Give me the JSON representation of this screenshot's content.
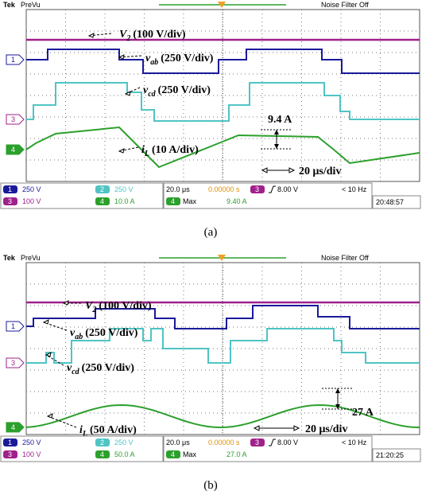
{
  "panels": [
    {
      "header": {
        "brand": "Tek",
        "mode": "PreVu",
        "filter": "Noise Filter Off"
      },
      "markers": [
        "1",
        "3",
        "4"
      ],
      "annotations": [
        {
          "symbol": "V",
          "sub": "2",
          "scale": "(100 V/div)"
        },
        {
          "symbol": "v",
          "sub": "ab",
          "scale": "(250 V/div)"
        },
        {
          "symbol": "v",
          "sub": "cd",
          "scale": "(250 V/div)"
        },
        {
          "symbol": "i",
          "sub": "L",
          "scale": "(10 A/div)"
        }
      ],
      "measure_label": "9.4 A",
      "time_label": "20 μs/div",
      "status": {
        "channel_scales": [
          {
            "num": "1",
            "scale": "250 V"
          },
          {
            "num": "2",
            "scale": "250 V"
          },
          {
            "num": "3",
            "scale": "100 V"
          },
          {
            "num": "4",
            "scale": "10.0 A"
          }
        ],
        "timebase": "20.0 μs",
        "position": "0.00000 s",
        "trigger": {
          "channel": "3",
          "level": "8.00 V"
        },
        "freq": "< 10 Hz",
        "measure": {
          "channel": "4",
          "label": "Max",
          "value": "9.40 A"
        },
        "clock": "20:48:57"
      },
      "caption": "(a)"
    },
    {
      "header": {
        "brand": "Tek",
        "mode": "PreVu",
        "filter": "Noise Filter Off"
      },
      "markers": [
        "1",
        "3",
        "4"
      ],
      "annotations": [
        {
          "symbol": "V",
          "sub": "2",
          "scale": "(100 V/div)"
        },
        {
          "symbol": "v",
          "sub": "ab",
          "scale": "(250 V/div)"
        },
        {
          "symbol": "v",
          "sub": "cd",
          "scale": "(250 V/div)"
        },
        {
          "symbol": "i",
          "sub": "L",
          "scale": "(50 A/div)"
        }
      ],
      "measure_label": "27 A",
      "time_label": "20 μs/div",
      "status": {
        "channel_scales": [
          {
            "num": "1",
            "scale": "250 V"
          },
          {
            "num": "2",
            "scale": "250 V"
          },
          {
            "num": "3",
            "scale": "100 V"
          },
          {
            "num": "4",
            "scale": "50.0 A"
          }
        ],
        "timebase": "20.0 μs",
        "position": "0.00000 s",
        "trigger": {
          "channel": "3",
          "level": "8.00 V"
        },
        "freq": "< 10 Hz",
        "measure": {
          "channel": "4",
          "label": "Max",
          "value": "27.0 A"
        },
        "clock": "21:20:25"
      },
      "caption": "(b)"
    }
  ]
}
